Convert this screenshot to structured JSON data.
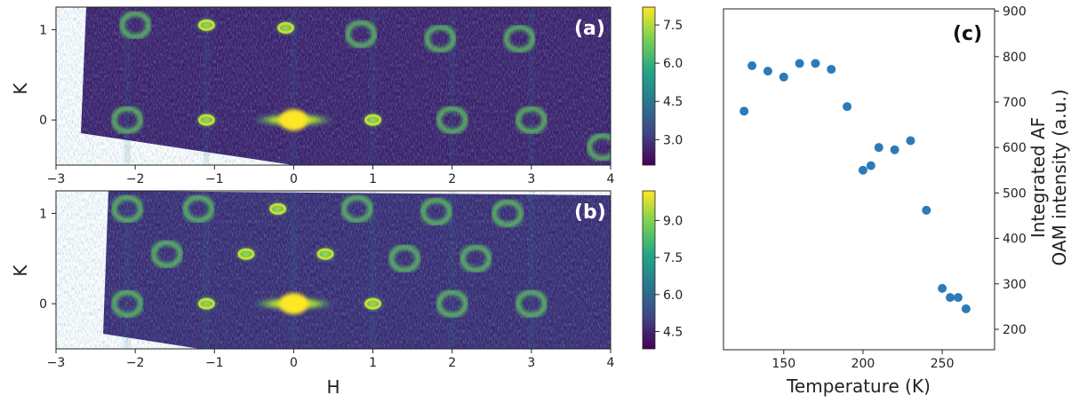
{
  "chart_data": [
    {
      "panel": "(a)",
      "type": "heatmap",
      "xlabel": "",
      "ylabel": "K",
      "xlim": [
        -3,
        4
      ],
      "ylim": [
        -0.5,
        1.25
      ],
      "x_ticks": [
        "−3",
        "−2",
        "−1",
        "0",
        "1",
        "2",
        "3",
        "4"
      ],
      "y_ticks": [
        "0",
        "1"
      ],
      "colorbar_ticks": [
        "3.0",
        "4.5",
        "6.0",
        "7.5"
      ],
      "colorbar_range": [
        2.0,
        8.2
      ],
      "peaks": [
        {
          "h": -2.1,
          "k": 0.0,
          "ring": true
        },
        {
          "h": -1.1,
          "k": 0.0,
          "ring": false
        },
        {
          "h": 0.0,
          "k": 0.0,
          "ring": false
        },
        {
          "h": 1.0,
          "k": 0.0,
          "ring": false
        },
        {
          "h": 2.0,
          "k": 0.0,
          "ring": true
        },
        {
          "h": 3.0,
          "k": 0.0,
          "ring": true
        },
        {
          "h": 3.9,
          "k": -0.3,
          "ring": true
        },
        {
          "h": -2.0,
          "k": 1.05,
          "ring": true
        },
        {
          "h": -1.1,
          "k": 1.05,
          "ring": false
        },
        {
          "h": -0.1,
          "k": 1.02,
          "ring": false
        },
        {
          "h": 0.85,
          "k": 0.95,
          "ring": true
        },
        {
          "h": 1.85,
          "k": 0.9,
          "ring": true
        },
        {
          "h": 2.85,
          "k": 0.9,
          "ring": true
        }
      ]
    },
    {
      "panel": "(b)",
      "type": "heatmap",
      "xlabel": "H",
      "ylabel": "K",
      "xlim": [
        -3,
        4
      ],
      "ylim": [
        -0.5,
        1.25
      ],
      "x_ticks": [
        "−3",
        "−2",
        "−1",
        "0",
        "1",
        "2",
        "3",
        "4"
      ],
      "y_ticks": [
        "0",
        "1"
      ],
      "colorbar_ticks": [
        "4.5",
        "6.0",
        "7.5",
        "9.0"
      ],
      "colorbar_range": [
        3.8,
        10.2
      ],
      "peaks": [
        {
          "h": -2.1,
          "k": 0.0,
          "ring": true
        },
        {
          "h": -1.1,
          "k": 0.0,
          "ring": false
        },
        {
          "h": 0.0,
          "k": 0.0,
          "ring": false
        },
        {
          "h": 1.0,
          "k": 0.0,
          "ring": false
        },
        {
          "h": 2.0,
          "k": 0.0,
          "ring": true
        },
        {
          "h": 3.0,
          "k": 0.0,
          "ring": true
        },
        {
          "h": -1.6,
          "k": 0.55,
          "ring": true
        },
        {
          "h": -0.6,
          "k": 0.55,
          "ring": false
        },
        {
          "h": 0.4,
          "k": 0.55,
          "ring": false
        },
        {
          "h": 1.4,
          "k": 0.5,
          "ring": true
        },
        {
          "h": 2.3,
          "k": 0.5,
          "ring": true
        },
        {
          "h": -2.1,
          "k": 1.05,
          "ring": true
        },
        {
          "h": -1.2,
          "k": 1.05,
          "ring": true
        },
        {
          "h": -0.2,
          "k": 1.05,
          "ring": false
        },
        {
          "h": 0.8,
          "k": 1.05,
          "ring": true
        },
        {
          "h": 1.8,
          "k": 1.02,
          "ring": true
        },
        {
          "h": 2.7,
          "k": 1.0,
          "ring": true
        }
      ]
    },
    {
      "panel": "(c)",
      "type": "scatter",
      "xlabel": "Temperature (K)",
      "ylabel_lines": [
        "Integrated AF",
        "OAM intensity (a.u.)"
      ],
      "xlim": [
        112,
        283
      ],
      "ylim": [
        155,
        905
      ],
      "x_ticks": [
        150,
        200,
        250
      ],
      "y_ticks": [
        200,
        300,
        400,
        500,
        600,
        700,
        800,
        900
      ],
      "color": "#2b7bba",
      "x": [
        125,
        130,
        140,
        150,
        160,
        170,
        180,
        190,
        200,
        205,
        210,
        220,
        230,
        240,
        250,
        255,
        260,
        265
      ],
      "y": [
        680,
        780,
        768,
        755,
        785,
        785,
        772,
        690,
        550,
        560,
        600,
        595,
        615,
        462,
        290,
        270,
        270,
        245
      ]
    }
  ]
}
